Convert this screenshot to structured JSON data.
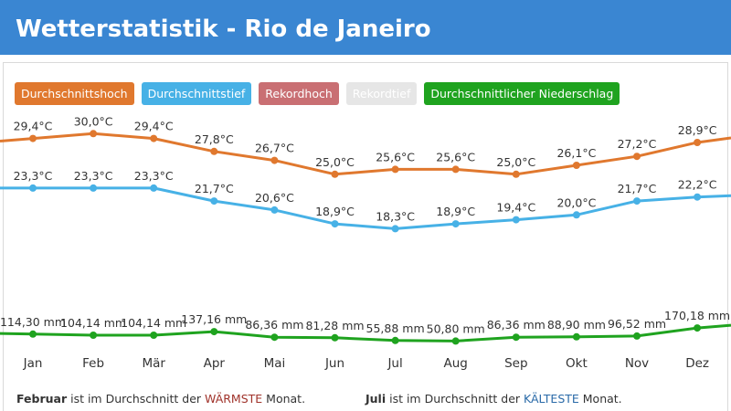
{
  "header": {
    "title": "Wetterstatistik - Rio de Janeiro"
  },
  "legend": [
    {
      "label": "Durchschnittshoch",
      "color": "#e0782e"
    },
    {
      "label": "Durchschnittstief",
      "color": "#47b1e6"
    },
    {
      "label": "Rekordhoch",
      "color": "#c96f73"
    },
    {
      "label": "Rekordtief",
      "color": "#e6e6e6"
    },
    {
      "label": "Durchschnittlicher Niederschlag",
      "color": "#1fa31f"
    }
  ],
  "chart_data": {
    "type": "line",
    "categories": [
      "Jan",
      "Feb",
      "Mär",
      "Apr",
      "Mai",
      "Jun",
      "Jul",
      "Aug",
      "Sep",
      "Okt",
      "Nov",
      "Dez"
    ],
    "series": [
      {
        "name": "Durchschnittshoch",
        "color": "#e0782e",
        "values": [
          29.4,
          30.0,
          29.4,
          27.8,
          26.7,
          25.0,
          25.6,
          25.6,
          25.0,
          26.1,
          27.2,
          28.9
        ],
        "labels": [
          "29,4°C",
          "30,0°C",
          "29,4°C",
          "27,8°C",
          "26,7°C",
          "25,0°C",
          "25,6°C",
          "25,6°C",
          "25,0°C",
          "26,1°C",
          "27,2°C",
          "28,9°C"
        ]
      },
      {
        "name": "Durchschnittstief",
        "color": "#47b1e6",
        "values": [
          23.3,
          23.3,
          23.3,
          21.7,
          20.6,
          18.9,
          18.3,
          18.9,
          19.4,
          20.0,
          21.7,
          22.2
        ],
        "labels": [
          "23,3°C",
          "23,3°C",
          "23,3°C",
          "21,7°C",
          "20,6°C",
          "18,9°C",
          "18,3°C",
          "18,9°C",
          "19,4°C",
          "20,0°C",
          "21,7°C",
          "22,2°C"
        ]
      },
      {
        "name": "Durchschnittlicher Niederschlag",
        "color": "#1fa31f",
        "values": [
          114.3,
          104.14,
          104.14,
          137.16,
          86.36,
          81.28,
          55.88,
          50.8,
          86.36,
          88.9,
          96.52,
          170.18
        ],
        "labels": [
          "114,30 mm",
          "104,14 mm",
          "104,14 mm",
          "137,16 mm",
          "86,36 mm",
          "81,28 mm",
          "55,88 mm",
          "50,80 mm",
          "86,36 mm",
          "88,90 mm",
          "96,52 mm",
          "170,18 mm"
        ]
      }
    ]
  },
  "footer": {
    "warm": {
      "month": "Februar",
      "text1": " ist im Durchschnitt der ",
      "word": "WÄRMSTE",
      "text2": " Monat."
    },
    "cold": {
      "month": "Juli",
      "text1": " ist im Durchschnitt der ",
      "word": "KÄLTESTE",
      "text2": " Monat."
    }
  }
}
